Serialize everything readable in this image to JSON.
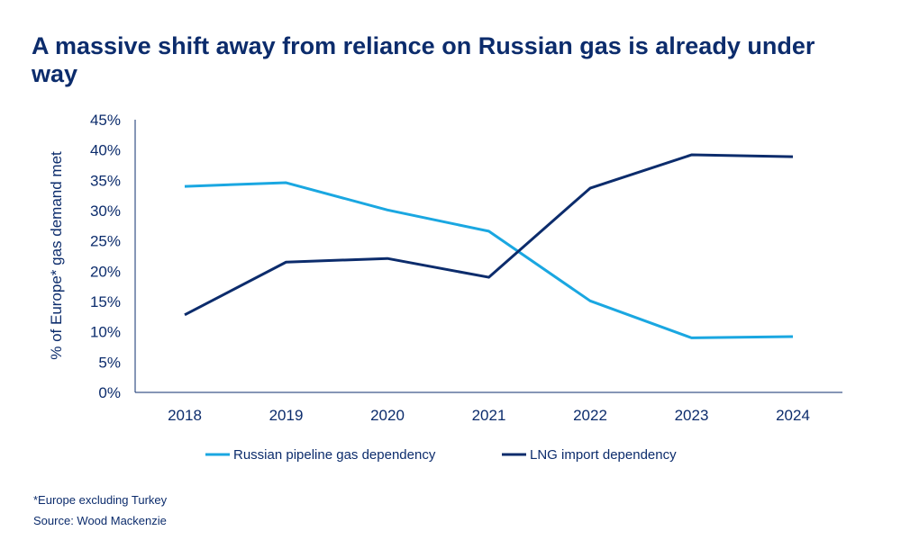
{
  "chart_data": {
    "type": "line",
    "title": "A massive shift away from reliance on Russian gas is already under way",
    "ylabel": "% of Europe* gas demand met",
    "xlabel": "",
    "categories": [
      "2018",
      "2019",
      "2020",
      "2021",
      "2022",
      "2023",
      "2024"
    ],
    "yticks": [
      "0%",
      "5%",
      "10%",
      "15%",
      "20%",
      "25%",
      "30%",
      "35%",
      "40%",
      "45%"
    ],
    "ylim": [
      0,
      45
    ],
    "grid": false,
    "legend_position": "bottom",
    "series": [
      {
        "name": "Russian pipeline gas dependency",
        "color": "#1aa7e1",
        "values": [
          34.0,
          34.6,
          30.1,
          26.6,
          15.1,
          9.0,
          9.2
        ]
      },
      {
        "name": "LNG import dependency",
        "color": "#0c2c6c",
        "values": [
          12.8,
          21.5,
          22.1,
          19.0,
          33.7,
          39.2,
          38.9
        ]
      }
    ]
  },
  "footnotes": [
    "*Europe excluding Turkey",
    "Source: Wood Mackenzie"
  ]
}
